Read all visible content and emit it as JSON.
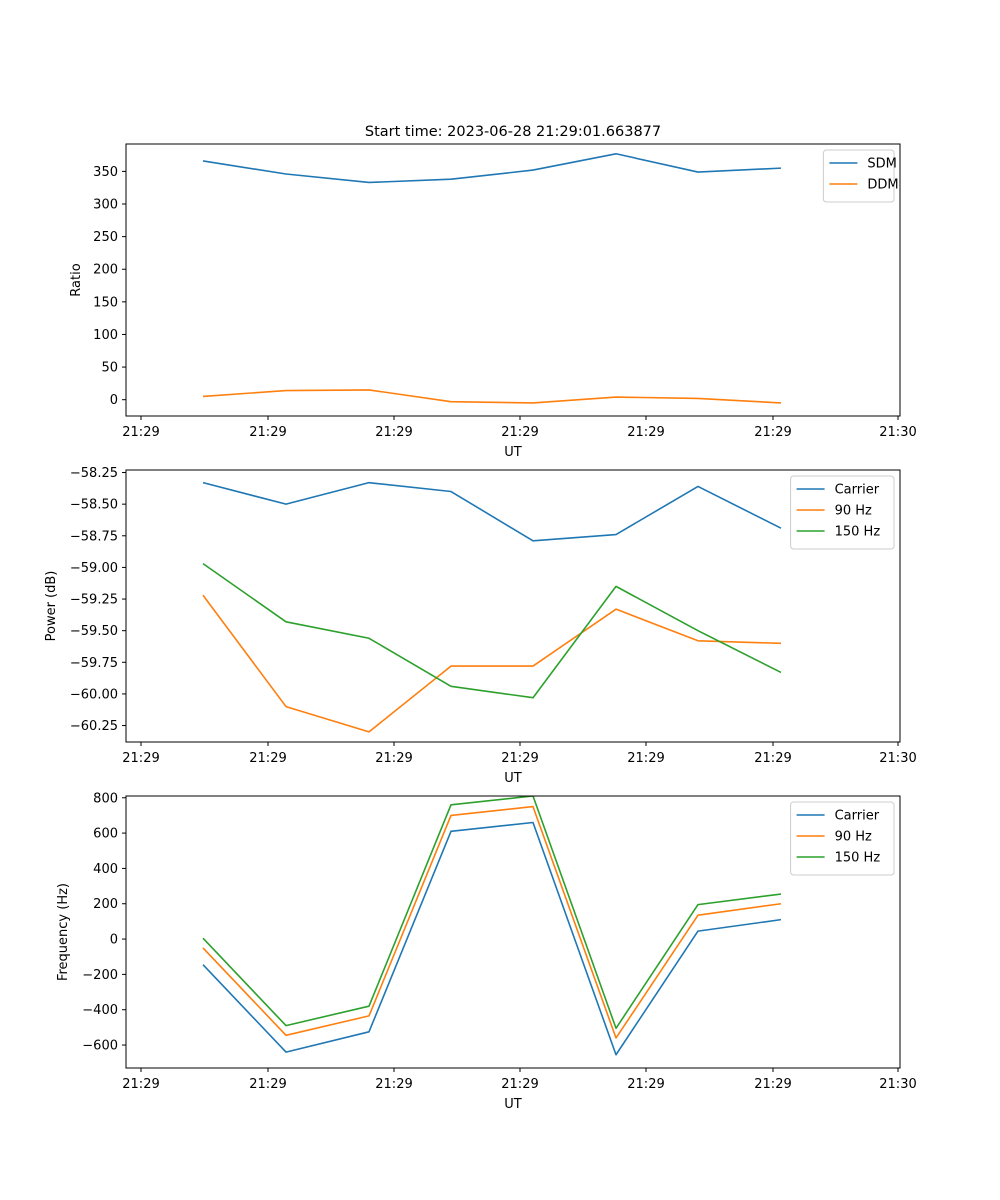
{
  "title": "Start time: 2023-06-28 21:29:01.663877",
  "chart_data": [
    {
      "type": "line",
      "xlabel": "UT",
      "ylabel": "Ratio",
      "x_tick_labels": [
        "21:29",
        "21:29",
        "21:29",
        "21:29",
        "21:29",
        "21:29",
        "21:30"
      ],
      "y_ticks": [
        0,
        50,
        100,
        150,
        200,
        250,
        300,
        350
      ],
      "y_tick_labels": [
        "0",
        "50",
        "100",
        "150",
        "200",
        "250",
        "300",
        "350"
      ],
      "ylim": [
        -25,
        392
      ],
      "legend_position": "top-right",
      "series": [
        {
          "name": "SDM",
          "color": "#1f77b4",
          "values": [
            366,
            346,
            333,
            338,
            352,
            377,
            349,
            355
          ]
        },
        {
          "name": "DDM",
          "color": "#ff7f0e",
          "values": [
            5,
            14,
            15,
            -3,
            -5,
            4,
            2,
            -5
          ]
        }
      ]
    },
    {
      "type": "line",
      "xlabel": "UT",
      "ylabel": "Power (dB)",
      "x_tick_labels": [
        "21:29",
        "21:29",
        "21:29",
        "21:29",
        "21:29",
        "21:29",
        "21:30"
      ],
      "y_ticks": [
        -60.25,
        -60.0,
        -59.75,
        -59.5,
        -59.25,
        -59.0,
        -58.75,
        -58.5,
        -58.25
      ],
      "y_tick_labels": [
        "−60.25",
        "−60.00",
        "−59.75",
        "−59.50",
        "−59.25",
        "−59.00",
        "−58.75",
        "−58.50",
        "−58.25"
      ],
      "ylim": [
        -60.38,
        -58.23
      ],
      "legend_position": "top-right",
      "series": [
        {
          "name": "Carrier",
          "color": "#1f77b4",
          "values": [
            -58.33,
            -58.5,
            -58.33,
            -58.4,
            -58.79,
            -58.74,
            -58.36,
            -58.69
          ]
        },
        {
          "name": "90 Hz",
          "color": "#ff7f0e",
          "values": [
            -59.22,
            -60.1,
            -60.3,
            -59.78,
            -59.78,
            -59.33,
            -59.58,
            -59.6
          ]
        },
        {
          "name": "150 Hz",
          "color": "#2ca02c",
          "values": [
            -58.97,
            -59.43,
            -59.56,
            -59.94,
            -60.03,
            -59.15,
            -59.5,
            -59.83
          ]
        }
      ]
    },
    {
      "type": "line",
      "xlabel": "UT",
      "ylabel": "Frequency (Hz)",
      "x_tick_labels": [
        "21:29",
        "21:29",
        "21:29",
        "21:29",
        "21:29",
        "21:29",
        "21:30"
      ],
      "y_ticks": [
        -600,
        -400,
        -200,
        0,
        200,
        400,
        600,
        800
      ],
      "y_tick_labels": [
        "−600",
        "−400",
        "−200",
        "0",
        "200",
        "400",
        "600",
        "800"
      ],
      "ylim": [
        -730,
        810
      ],
      "legend_position": "top-right",
      "series": [
        {
          "name": "Carrier",
          "color": "#1f77b4",
          "values": [
            -145,
            -640,
            -525,
            610,
            660,
            -655,
            45,
            110
          ]
        },
        {
          "name": "90 Hz",
          "color": "#ff7f0e",
          "values": [
            -50,
            -545,
            -435,
            700,
            750,
            -560,
            135,
            200
          ]
        },
        {
          "name": "150 Hz",
          "color": "#2ca02c",
          "values": [
            5,
            -490,
            -380,
            760,
            810,
            -505,
            195,
            255
          ]
        }
      ]
    }
  ]
}
